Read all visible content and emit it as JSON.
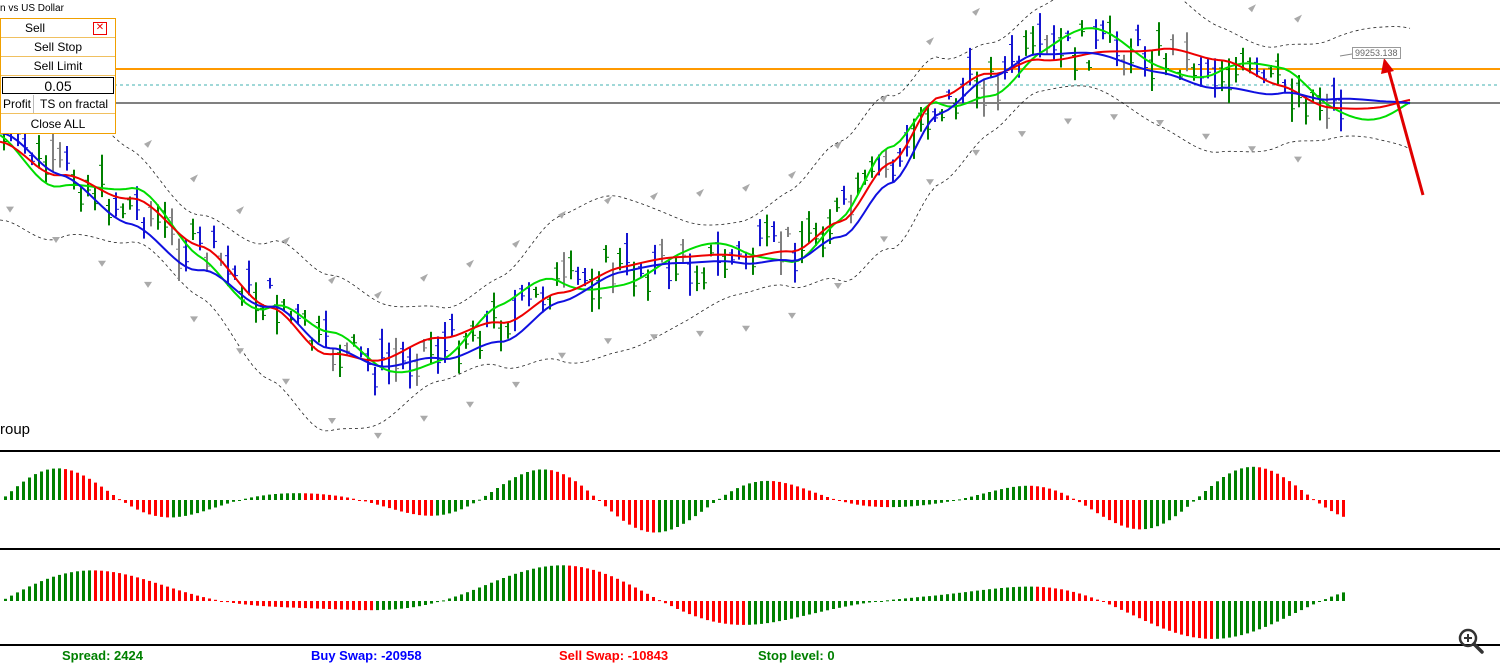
{
  "symbol_title": "n vs US Dollar",
  "group_label": "roup",
  "trade_panel": {
    "sell": "Sell",
    "sell_stop": "Sell Stop",
    "sell_limit": "Sell Limit",
    "lot": "0.05",
    "profit": "Profit",
    "ts_fractal": "TS on fractal",
    "close_all": "Close ALL",
    "close_icon": "close-x-icon"
  },
  "price_label": "99253.138",
  "status": {
    "spread": "Spread: 2424",
    "buy_swap": "Buy Swap: -20958",
    "sell_swap": "Sell Swap: -10843",
    "stop_level": "Stop level: 0"
  },
  "colors": {
    "up_candle": "#008000",
    "down_candle": "#1515d0",
    "neutral_candle": "#808080",
    "ma_green": "#00dd00",
    "ma_red": "#ee0000",
    "ma_blue": "#1010e0",
    "level_orange": "#ff9900",
    "level_gray": "#808080",
    "level_teal": "#40b0b0",
    "hist_up": "#008000",
    "hist_down": "#ff0000",
    "buy_swap": "#0000ff",
    "sell_swap": "#ff0000",
    "spread": "#008000",
    "stop_level": "#008000"
  },
  "zoom_icon": "zoom-in-icon"
}
